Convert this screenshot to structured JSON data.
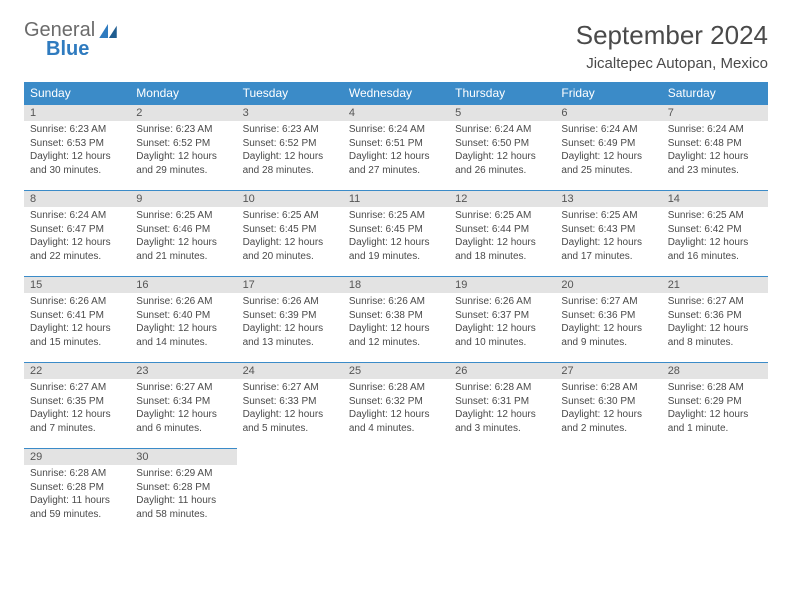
{
  "brand": {
    "general": "General",
    "blue": "Blue"
  },
  "title": "September 2024",
  "location": "Jicaltepec Autopan, Mexico",
  "colors": {
    "header_bg": "#3b8bc8",
    "header_text": "#ffffff",
    "daynum_bg": "#e3e3e3",
    "text": "#4a4a4a",
    "rule": "#3b8bc8",
    "logo_gray": "#6b6b6b",
    "logo_blue": "#2f7bbf"
  },
  "weekdays": [
    "Sunday",
    "Monday",
    "Tuesday",
    "Wednesday",
    "Thursday",
    "Friday",
    "Saturday"
  ],
  "weeks": [
    [
      {
        "n": "1",
        "sr": "Sunrise: 6:23 AM",
        "ss": "Sunset: 6:53 PM",
        "d1": "Daylight: 12 hours",
        "d2": "and 30 minutes."
      },
      {
        "n": "2",
        "sr": "Sunrise: 6:23 AM",
        "ss": "Sunset: 6:52 PM",
        "d1": "Daylight: 12 hours",
        "d2": "and 29 minutes."
      },
      {
        "n": "3",
        "sr": "Sunrise: 6:23 AM",
        "ss": "Sunset: 6:52 PM",
        "d1": "Daylight: 12 hours",
        "d2": "and 28 minutes."
      },
      {
        "n": "4",
        "sr": "Sunrise: 6:24 AM",
        "ss": "Sunset: 6:51 PM",
        "d1": "Daylight: 12 hours",
        "d2": "and 27 minutes."
      },
      {
        "n": "5",
        "sr": "Sunrise: 6:24 AM",
        "ss": "Sunset: 6:50 PM",
        "d1": "Daylight: 12 hours",
        "d2": "and 26 minutes."
      },
      {
        "n": "6",
        "sr": "Sunrise: 6:24 AM",
        "ss": "Sunset: 6:49 PM",
        "d1": "Daylight: 12 hours",
        "d2": "and 25 minutes."
      },
      {
        "n": "7",
        "sr": "Sunrise: 6:24 AM",
        "ss": "Sunset: 6:48 PM",
        "d1": "Daylight: 12 hours",
        "d2": "and 23 minutes."
      }
    ],
    [
      {
        "n": "8",
        "sr": "Sunrise: 6:24 AM",
        "ss": "Sunset: 6:47 PM",
        "d1": "Daylight: 12 hours",
        "d2": "and 22 minutes."
      },
      {
        "n": "9",
        "sr": "Sunrise: 6:25 AM",
        "ss": "Sunset: 6:46 PM",
        "d1": "Daylight: 12 hours",
        "d2": "and 21 minutes."
      },
      {
        "n": "10",
        "sr": "Sunrise: 6:25 AM",
        "ss": "Sunset: 6:45 PM",
        "d1": "Daylight: 12 hours",
        "d2": "and 20 minutes."
      },
      {
        "n": "11",
        "sr": "Sunrise: 6:25 AM",
        "ss": "Sunset: 6:45 PM",
        "d1": "Daylight: 12 hours",
        "d2": "and 19 minutes."
      },
      {
        "n": "12",
        "sr": "Sunrise: 6:25 AM",
        "ss": "Sunset: 6:44 PM",
        "d1": "Daylight: 12 hours",
        "d2": "and 18 minutes."
      },
      {
        "n": "13",
        "sr": "Sunrise: 6:25 AM",
        "ss": "Sunset: 6:43 PM",
        "d1": "Daylight: 12 hours",
        "d2": "and 17 minutes."
      },
      {
        "n": "14",
        "sr": "Sunrise: 6:25 AM",
        "ss": "Sunset: 6:42 PM",
        "d1": "Daylight: 12 hours",
        "d2": "and 16 minutes."
      }
    ],
    [
      {
        "n": "15",
        "sr": "Sunrise: 6:26 AM",
        "ss": "Sunset: 6:41 PM",
        "d1": "Daylight: 12 hours",
        "d2": "and 15 minutes."
      },
      {
        "n": "16",
        "sr": "Sunrise: 6:26 AM",
        "ss": "Sunset: 6:40 PM",
        "d1": "Daylight: 12 hours",
        "d2": "and 14 minutes."
      },
      {
        "n": "17",
        "sr": "Sunrise: 6:26 AM",
        "ss": "Sunset: 6:39 PM",
        "d1": "Daylight: 12 hours",
        "d2": "and 13 minutes."
      },
      {
        "n": "18",
        "sr": "Sunrise: 6:26 AM",
        "ss": "Sunset: 6:38 PM",
        "d1": "Daylight: 12 hours",
        "d2": "and 12 minutes."
      },
      {
        "n": "19",
        "sr": "Sunrise: 6:26 AM",
        "ss": "Sunset: 6:37 PM",
        "d1": "Daylight: 12 hours",
        "d2": "and 10 minutes."
      },
      {
        "n": "20",
        "sr": "Sunrise: 6:27 AM",
        "ss": "Sunset: 6:36 PM",
        "d1": "Daylight: 12 hours",
        "d2": "and 9 minutes."
      },
      {
        "n": "21",
        "sr": "Sunrise: 6:27 AM",
        "ss": "Sunset: 6:36 PM",
        "d1": "Daylight: 12 hours",
        "d2": "and 8 minutes."
      }
    ],
    [
      {
        "n": "22",
        "sr": "Sunrise: 6:27 AM",
        "ss": "Sunset: 6:35 PM",
        "d1": "Daylight: 12 hours",
        "d2": "and 7 minutes."
      },
      {
        "n": "23",
        "sr": "Sunrise: 6:27 AM",
        "ss": "Sunset: 6:34 PM",
        "d1": "Daylight: 12 hours",
        "d2": "and 6 minutes."
      },
      {
        "n": "24",
        "sr": "Sunrise: 6:27 AM",
        "ss": "Sunset: 6:33 PM",
        "d1": "Daylight: 12 hours",
        "d2": "and 5 minutes."
      },
      {
        "n": "25",
        "sr": "Sunrise: 6:28 AM",
        "ss": "Sunset: 6:32 PM",
        "d1": "Daylight: 12 hours",
        "d2": "and 4 minutes."
      },
      {
        "n": "26",
        "sr": "Sunrise: 6:28 AM",
        "ss": "Sunset: 6:31 PM",
        "d1": "Daylight: 12 hours",
        "d2": "and 3 minutes."
      },
      {
        "n": "27",
        "sr": "Sunrise: 6:28 AM",
        "ss": "Sunset: 6:30 PM",
        "d1": "Daylight: 12 hours",
        "d2": "and 2 minutes."
      },
      {
        "n": "28",
        "sr": "Sunrise: 6:28 AM",
        "ss": "Sunset: 6:29 PM",
        "d1": "Daylight: 12 hours",
        "d2": "and 1 minute."
      }
    ],
    [
      {
        "n": "29",
        "sr": "Sunrise: 6:28 AM",
        "ss": "Sunset: 6:28 PM",
        "d1": "Daylight: 11 hours",
        "d2": "and 59 minutes."
      },
      {
        "n": "30",
        "sr": "Sunrise: 6:29 AM",
        "ss": "Sunset: 6:28 PM",
        "d1": "Daylight: 11 hours",
        "d2": "and 58 minutes."
      },
      null,
      null,
      null,
      null,
      null
    ]
  ]
}
